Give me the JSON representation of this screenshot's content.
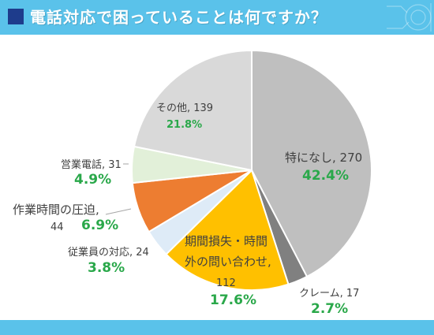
{
  "title": "電話対応で困っていることは何ですか？",
  "colors": {
    "header": "#5ac2ea",
    "title_square": "#1e3c8c",
    "percent_text": "#2aa84a",
    "label_text": "#404040"
  },
  "chart_data": {
    "type": "pie",
    "title": "電話対応で困っていることは何ですか？",
    "slices": [
      {
        "label": "特になし",
        "value": 270,
        "percent": "42.4%",
        "color": "#bfbfbf"
      },
      {
        "label": "クレーム",
        "value": 17,
        "percent": "2.7%",
        "color": "#808080"
      },
      {
        "label": "期間損失・時間外の問い合わせ",
        "value": 112,
        "percent": "17.6%",
        "color": "#ffc000"
      },
      {
        "label": "従業員の対応",
        "value": 24,
        "percent": "3.8%",
        "color": "#deebf7"
      },
      {
        "label": "作業時間の圧迫",
        "value": 44,
        "percent": "6.9%",
        "color": "#ed7d31"
      },
      {
        "label": "営業電話",
        "value": 31,
        "percent": "4.9%",
        "color": "#e2f0d9"
      },
      {
        "label": "その他",
        "value": 139,
        "percent": "21.8%",
        "color": "#d9d9d9"
      }
    ],
    "labels": {
      "tokuninashi": "特になし, 270",
      "claim": "クレーム, 17",
      "kikan_line1": "期間損失・時間",
      "kikan_line2": "外の問い合わせ,",
      "kikan_line3": "112",
      "jugyoin": "従業員の対応, 24",
      "sagyo_line1": "作業時間の圧迫,",
      "sagyo_line2": "44",
      "eigyo": "営業電話, 31",
      "sonota": "その他, 139"
    }
  }
}
